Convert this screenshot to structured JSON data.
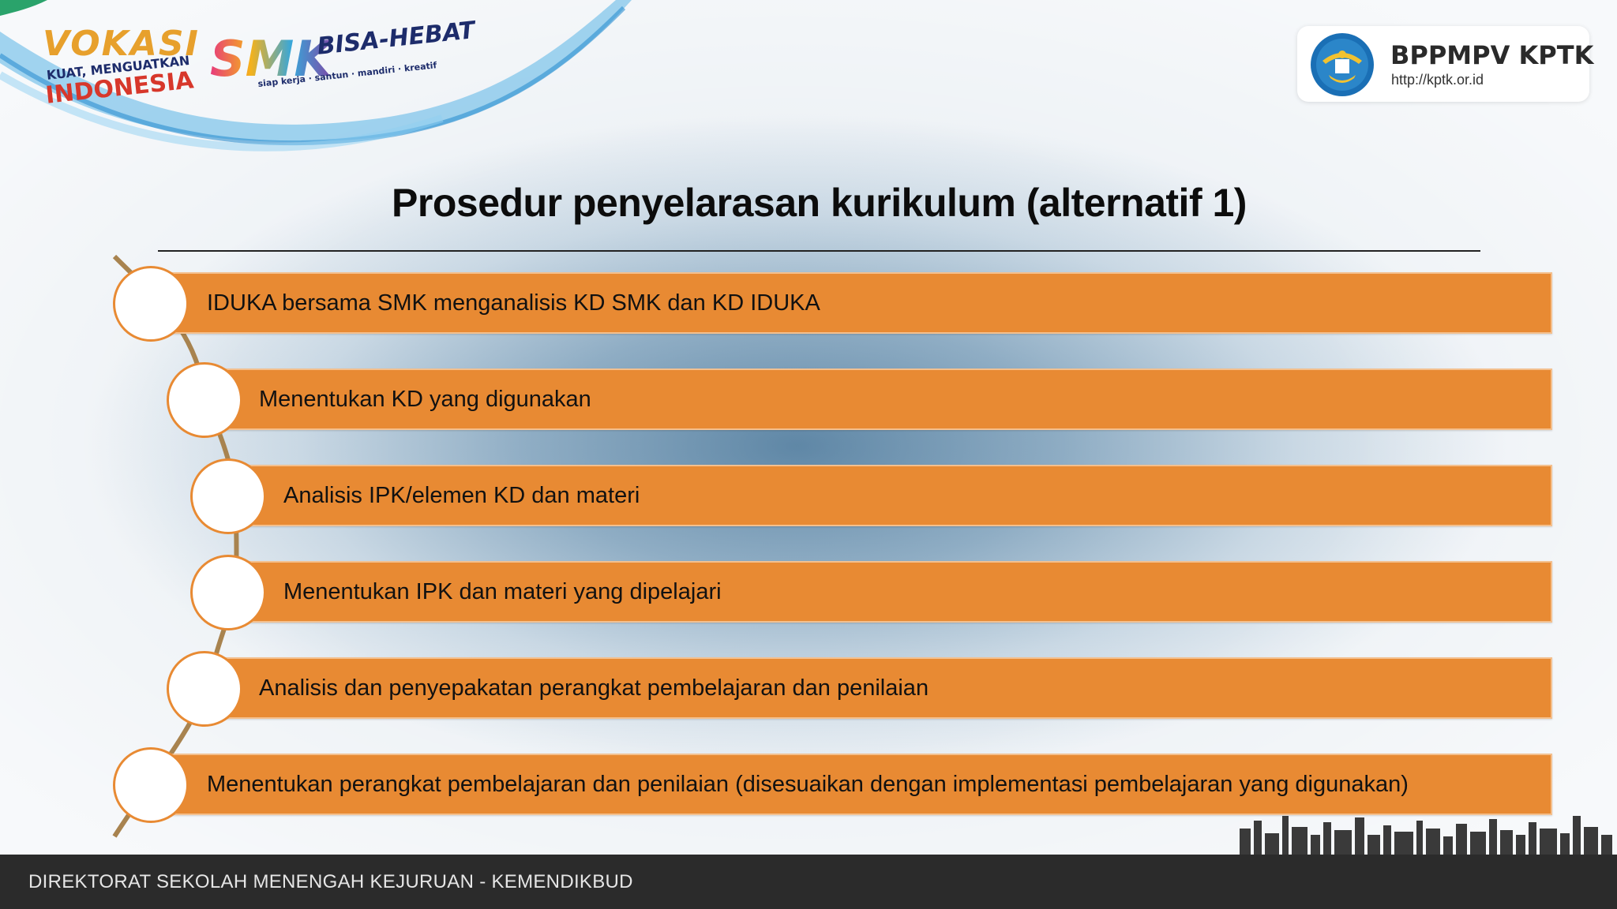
{
  "logos": {
    "vokasi": {
      "word": "VOKASI",
      "sub": "KUAT, MENGUATKAN",
      "country": "INDONESIA"
    },
    "smk": {
      "word": "SMK",
      "tagline_main": "BISA-HEBAT",
      "tagline_sub": "siap kerja · santun · mandiri · kreatif"
    }
  },
  "badge": {
    "title": "BPPMPV KPTK",
    "url": "http://kptk.or.id"
  },
  "slide": {
    "title": "Prosedur penyelarasan kurikulum (alternatif 1)",
    "steps": [
      {
        "text": "IDUKA bersama SMK menganalisis KD SMK dan KD IDUKA"
      },
      {
        "text": "Menentukan KD yang digunakan"
      },
      {
        "text": "Analisis IPK/elemen KD dan materi"
      },
      {
        "text": "Menentukan IPK dan materi yang dipelajari"
      },
      {
        "text": "Analisis dan penyepakatan perangkat pembelajaran dan penilaian"
      },
      {
        "text": "Menentukan perangkat pembelajaran dan penilaian (disesuaikan dengan implementasi pembelajaran yang digunakan)"
      }
    ]
  },
  "footer": {
    "text": "DIREKTORAT SEKOLAH MENENGAH KEJURUAN - KEMENDIKBUD"
  },
  "colors": {
    "accent": "#e88a33",
    "accent_border": "#f4c08e",
    "footer_bg": "#2b2b2b",
    "title": "#0c0c0c"
  }
}
